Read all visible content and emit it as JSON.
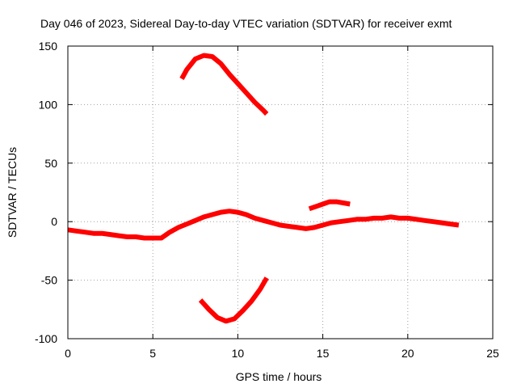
{
  "chart_data": {
    "type": "scatter",
    "title": "Day 046 of 2023, Sidereal Day-to-day VTEC variation (SDTVAR) for receiver exmt",
    "xlabel": "GPS time / hours",
    "ylabel": "SDTVAR / TECUs",
    "xlim": [
      0,
      25
    ],
    "ylim": [
      -100,
      150
    ],
    "xticks": [
      "0",
      "5",
      "10",
      "15",
      "20",
      "25"
    ],
    "yticks": [
      "-100",
      "-50",
      "0",
      "50",
      "100",
      "150"
    ],
    "grid": true,
    "series": [
      {
        "name": "main-band",
        "color": "#ff0000",
        "x": [
          0.0,
          0.5,
          1.0,
          1.5,
          2.0,
          2.5,
          3.0,
          3.5,
          4.0,
          4.5,
          5.0,
          5.5,
          6.0,
          6.5,
          7.0,
          7.5,
          8.0,
          8.5,
          9.0,
          9.5,
          10.0,
          10.5,
          11.0,
          11.5,
          12.0,
          12.5,
          13.0,
          13.5,
          14.0,
          14.5,
          15.0,
          15.5,
          16.0,
          16.5,
          17.0,
          17.5,
          18.0,
          18.5,
          19.0,
          19.5,
          20.0,
          20.5,
          21.0,
          21.5,
          22.0,
          22.5,
          23.0
        ],
        "y": [
          -7,
          -8,
          -9,
          -10,
          -10,
          -11,
          -12,
          -13,
          -13,
          -14,
          -14,
          -14,
          -9,
          -5,
          -2,
          1,
          4,
          6,
          8,
          9,
          8,
          6,
          3,
          1,
          -1,
          -3,
          -4,
          -5,
          -6,
          -5,
          -3,
          -1,
          0,
          1,
          2,
          2,
          3,
          3,
          4,
          3,
          3,
          2,
          1,
          0,
          -1,
          -2,
          -3
        ]
      },
      {
        "name": "upper-arc",
        "color": "#ff0000",
        "x": [
          6.7,
          7.0,
          7.5,
          8.0,
          8.5,
          9.0,
          9.5,
          10.0,
          10.5,
          11.0,
          11.5,
          11.7
        ],
        "y": [
          122,
          130,
          139,
          142,
          141,
          135,
          126,
          118,
          110,
          102,
          95,
          92
        ]
      },
      {
        "name": "lower-arc",
        "color": "#ff0000",
        "x": [
          7.8,
          8.3,
          8.8,
          9.3,
          9.8,
          10.3,
          10.8,
          11.3,
          11.7
        ],
        "y": [
          -67,
          -75,
          -82,
          -85,
          -83,
          -76,
          -68,
          -58,
          -48
        ]
      },
      {
        "name": "small-arc",
        "color": "#ff0000",
        "x": [
          14.2,
          14.6,
          15.0,
          15.4,
          15.8,
          16.2,
          16.6
        ],
        "y": [
          11,
          13,
          15,
          17,
          17,
          16,
          15
        ]
      }
    ]
  }
}
